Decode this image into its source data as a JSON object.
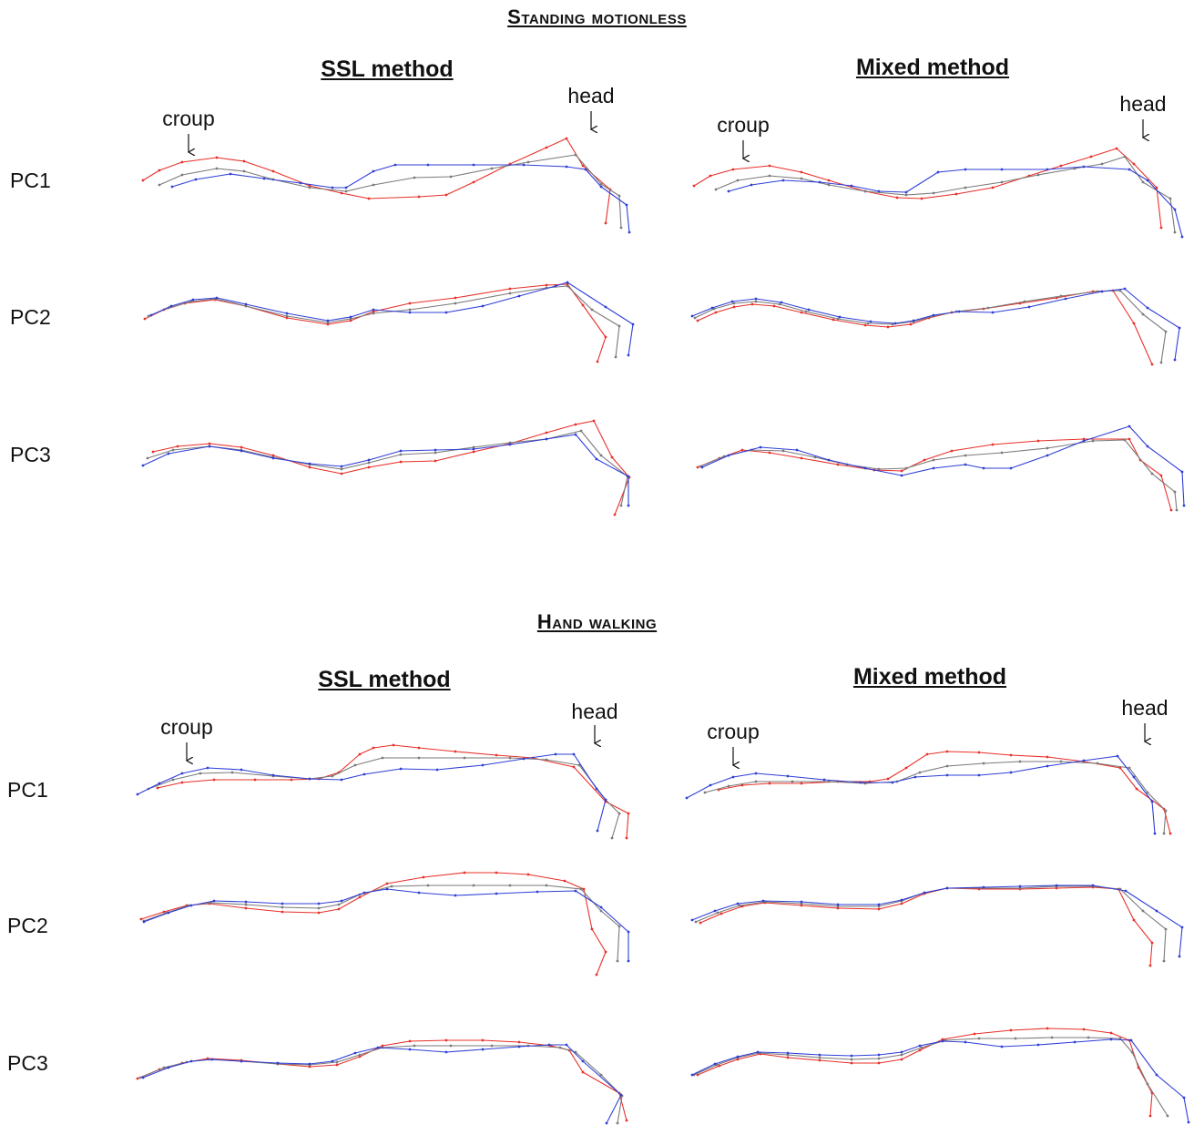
{
  "sections": [
    {
      "title": "Standing motionless",
      "methods": [
        "SSL method",
        "Mixed method"
      ],
      "rows": [
        "PC1",
        "PC2",
        "PC3"
      ],
      "annotations": {
        "croup": "croup",
        "head": "head"
      }
    },
    {
      "title": "Hand walking",
      "methods": [
        "SSL method",
        "Mixed method"
      ],
      "rows": [
        "PC1",
        "PC2",
        "PC3"
      ],
      "annotations": {
        "croup": "croup",
        "head": "head"
      }
    }
  ],
  "colors": {
    "red": "#e8302a",
    "grey": "#7a7a7a",
    "blue": "#2f3fd6"
  },
  "series_colors_order": [
    "red",
    "grey",
    "blue"
  ]
}
